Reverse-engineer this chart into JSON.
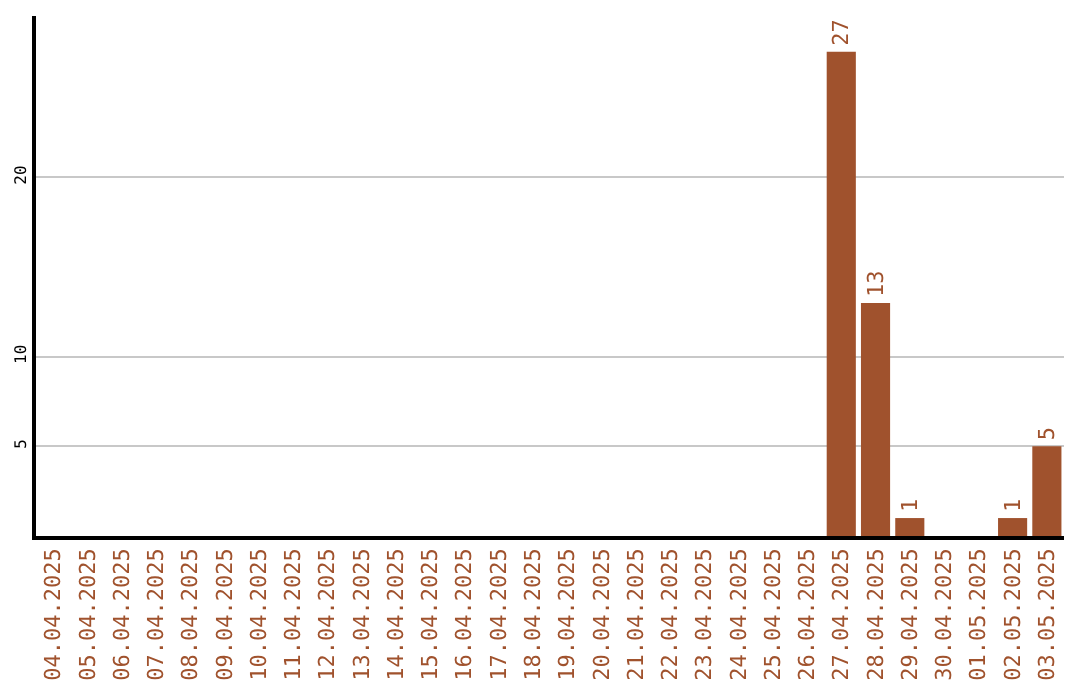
{
  "chart_data": {
    "type": "bar",
    "categories": [
      "04.04.2025",
      "05.04.2025",
      "06.04.2025",
      "07.04.2025",
      "08.04.2025",
      "09.04.2025",
      "10.04.2025",
      "11.04.2025",
      "12.04.2025",
      "13.04.2025",
      "14.04.2025",
      "15.04.2025",
      "16.04.2025",
      "17.04.2025",
      "18.04.2025",
      "19.04.2025",
      "20.04.2025",
      "21.04.2025",
      "22.04.2025",
      "23.04.2025",
      "24.04.2025",
      "25.04.2025",
      "26.04.2025",
      "27.04.2025",
      "28.04.2025",
      "29.04.2025",
      "30.04.2025",
      "01.05.2025",
      "02.05.2025",
      "03.05.2025"
    ],
    "values": [
      0,
      0,
      0,
      0,
      0,
      0,
      0,
      0,
      0,
      0,
      0,
      0,
      0,
      0,
      0,
      0,
      0,
      0,
      0,
      0,
      0,
      0,
      0,
      27,
      13,
      1,
      0,
      0,
      1,
      5
    ],
    "value_labels": [
      null,
      null,
      null,
      null,
      null,
      null,
      null,
      null,
      null,
      null,
      null,
      null,
      null,
      null,
      null,
      null,
      null,
      null,
      null,
      null,
      null,
      null,
      null,
      "27",
      "13",
      "1",
      null,
      null,
      "1",
      "5"
    ],
    "color": "#a0522d",
    "ylim": [
      0,
      29
    ],
    "yticks": [
      5,
      10,
      20
    ],
    "grid": "y"
  }
}
